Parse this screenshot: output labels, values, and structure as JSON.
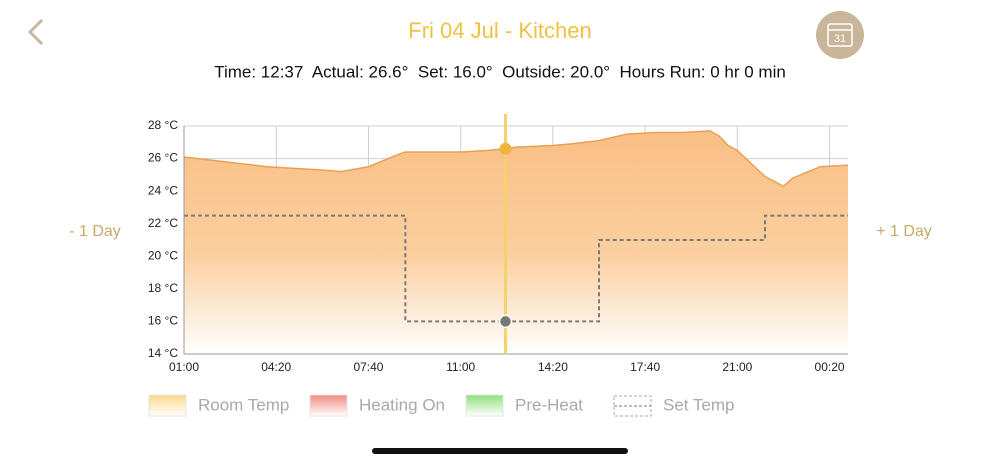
{
  "header": {
    "title": "Fri 04 Jul - Kitchen",
    "status": "Time: 12:37  Actual: 26.6°  Set: 16.0°  Outside: 20.0°  Hours Run: 0 hr 0 min",
    "prev": "- 1 Day",
    "next": "+ 1 Day",
    "calendar_day": "31"
  },
  "chart_data": {
    "type": "area",
    "xlim": [
      1,
      25
    ],
    "xticks": [
      {
        "value": 1,
        "label": "01:00"
      },
      {
        "value": 4.333,
        "label": "04:20"
      },
      {
        "value": 7.667,
        "label": "07:40"
      },
      {
        "value": 11,
        "label": "11:00"
      },
      {
        "value": 14.333,
        "label": "14:20"
      },
      {
        "value": 17.667,
        "label": "17:40"
      },
      {
        "value": 21,
        "label": "21:00"
      },
      {
        "value": 24.333,
        "label": "00:20"
      }
    ],
    "ylim": [
      14,
      28
    ],
    "yticks": [
      {
        "value": 14,
        "label": "14 °C"
      },
      {
        "value": 16,
        "label": "16 °C"
      },
      {
        "value": 18,
        "label": "18 °C"
      },
      {
        "value": 20,
        "label": "20 °C"
      },
      {
        "value": 22,
        "label": "22 °C"
      },
      {
        "value": 24,
        "label": "24 °C"
      },
      {
        "value": 26,
        "label": "26 °C"
      },
      {
        "value": 28,
        "label": "28 °C"
      }
    ],
    "grid": true,
    "series": [
      {
        "name": "Room Temp",
        "color": "#e8a055",
        "legend_color": "#fbd88a",
        "x": [
          1,
          2,
          3,
          4,
          5,
          6,
          6.67,
          7.67,
          8.67,
          9,
          10,
          11,
          12,
          12.62,
          13,
          14.33,
          15,
          16,
          17,
          18,
          19,
          20,
          20.33,
          20.67,
          21,
          22,
          22.67,
          23,
          24,
          25
        ],
        "values": [
          26.1,
          25.9,
          25.7,
          25.5,
          25.4,
          25.3,
          25.2,
          25.5,
          26.2,
          26.4,
          26.4,
          26.4,
          26.5,
          26.6,
          26.7,
          26.8,
          26.9,
          27.1,
          27.5,
          27.6,
          27.6,
          27.7,
          27.4,
          26.8,
          26.5,
          24.9,
          24.3,
          24.8,
          25.5,
          25.6
        ]
      },
      {
        "name": "Set Temp",
        "color": "#7a7a7a",
        "dashed": true,
        "x": [
          1,
          9,
          9,
          16,
          16,
          22,
          22,
          25
        ],
        "values": [
          22.5,
          22.5,
          16,
          16,
          21,
          21,
          22.5,
          22.5
        ]
      }
    ],
    "extra_legend": [
      {
        "name": "Heating On",
        "color": "#f08a80"
      },
      {
        "name": "Pre-Heat",
        "color": "#8ee07a"
      }
    ],
    "cursor": {
      "x": 12.62,
      "room_temp": 26.6,
      "set_temp": 16
    }
  }
}
